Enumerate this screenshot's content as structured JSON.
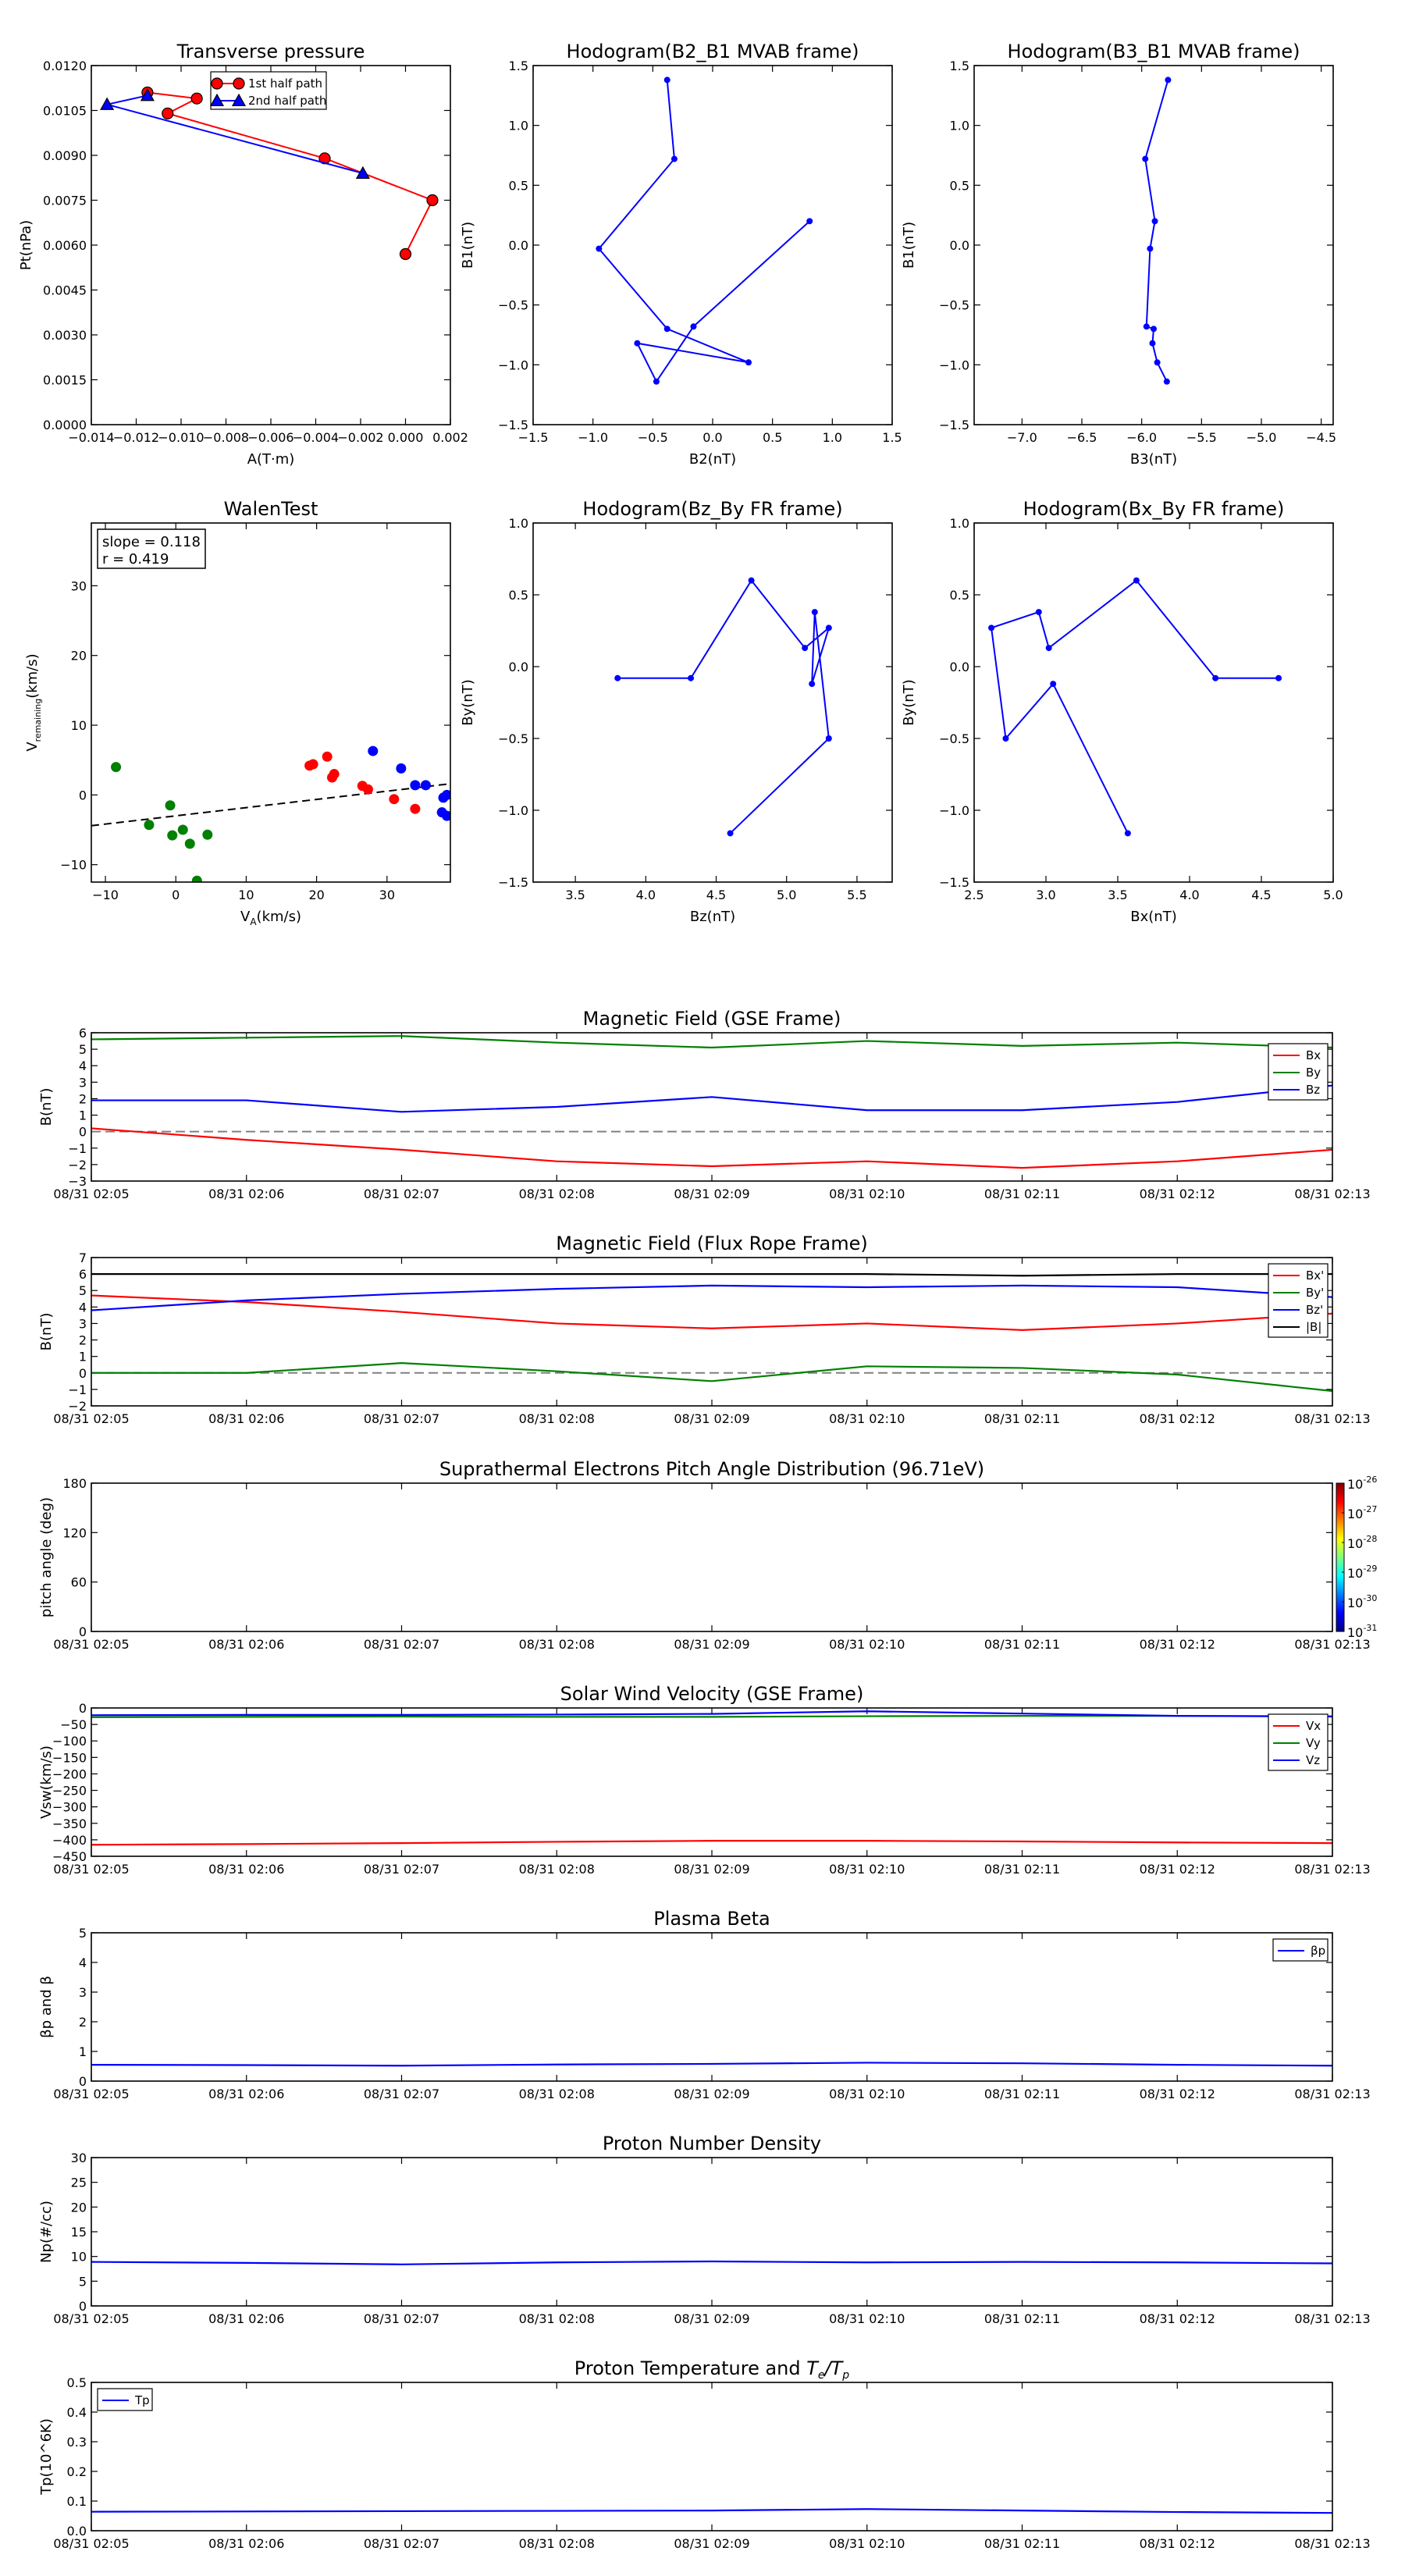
{
  "colors": {
    "red": "#ff0000",
    "green": "#008000",
    "blue": "#0000ff",
    "black": "#000000",
    "dash": "#808080"
  },
  "time_ticks": [
    "08/31 02:05",
    "08/31 02:06",
    "08/31 02:07",
    "08/31 02:08",
    "08/31 02:09",
    "08/31 02:10",
    "08/31 02:11",
    "08/31 02:12",
    "08/31 02:13"
  ],
  "chart_data": [
    {
      "id": "tp",
      "type": "line",
      "title": "Transverse pressure",
      "xlabel": "A(T·m)",
      "ylabel": "Pt(nPa)",
      "xlim": [
        -0.014,
        0.002
      ],
      "ylim": [
        0,
        0.012
      ],
      "grid": false,
      "legend_position": "top-right",
      "xticks": [
        -0.014,
        -0.012,
        -0.01,
        -0.008,
        -0.006,
        -0.004,
        -0.002,
        0.0,
        0.002
      ],
      "xtick_labels": [
        "−0.014",
        "−0.012",
        "−0.010",
        "−0.008",
        "−0.006",
        "−0.004",
        "−0.002",
        "0.000",
        "0.002"
      ],
      "yticks": [
        0,
        0.0015,
        0.003,
        0.0045,
        0.006,
        0.0075,
        0.009,
        0.0105,
        0.012
      ],
      "ytick_labels": [
        "0.0000",
        "0.0015",
        "0.0030",
        "0.0045",
        "0.0060",
        "0.0075",
        "0.0090",
        "0.0105",
        "0.0120"
      ],
      "series": [
        {
          "name": "1st half path",
          "color": "#ff0000",
          "marker": "circle",
          "x": [
            0.0,
            0.0012,
            -0.0036,
            -0.0106,
            -0.0093,
            -0.0115
          ],
          "y": [
            0.0057,
            0.0075,
            0.0089,
            0.0104,
            0.0109,
            0.0111
          ]
        },
        {
          "name": "2nd half path",
          "color": "#0000ff",
          "marker": "triangle",
          "x": [
            -0.0115,
            -0.0133,
            -0.0019
          ],
          "y": [
            0.011,
            0.0107,
            0.0084
          ]
        }
      ]
    },
    {
      "id": "h21",
      "type": "line",
      "title": "Hodogram(B2_B1 MVAB frame)",
      "xlabel": "B2(nT)",
      "ylabel": "B1(nT)",
      "xlim": [
        -1.5,
        1.5
      ],
      "ylim": [
        -1.5,
        1.5
      ],
      "grid": false,
      "xticks": [
        -1.5,
        -1.0,
        -0.5,
        0.0,
        0.5,
        1.0,
        1.5
      ],
      "xtick_labels": [
        "−1.5",
        "−1.0",
        "−0.5",
        "0.0",
        "0.5",
        "1.0",
        "1.5"
      ],
      "yticks": [
        -1.5,
        -1.0,
        -0.5,
        0.0,
        0.5,
        1.0,
        1.5
      ],
      "ytick_labels": [
        "−1.5",
        "−1.0",
        "−0.5",
        "0.0",
        "0.5",
        "1.0",
        "1.5"
      ],
      "series": [
        {
          "color": "#0000ff",
          "marker": "dot",
          "x": [
            -0.38,
            -0.32,
            -0.95,
            -0.38,
            0.3,
            -0.63,
            -0.47,
            -0.16,
            0.81
          ],
          "y": [
            1.38,
            0.72,
            -0.03,
            -0.7,
            -0.98,
            -0.82,
            -1.14,
            -0.68,
            0.2
          ]
        }
      ]
    },
    {
      "id": "h31",
      "type": "line",
      "title": "Hodogram(B3_B1 MVAB frame)",
      "xlabel": "B3(nT)",
      "ylabel": "B1(nT)",
      "xlim": [
        -7.4,
        -4.4
      ],
      "ylim": [
        -1.5,
        1.5
      ],
      "grid": false,
      "xticks": [
        -7.0,
        -6.5,
        -6.0,
        -5.5,
        -5.0,
        -4.5
      ],
      "xtick_labels": [
        "−7.0",
        "−6.5",
        "−6.0",
        "−5.5",
        "−5.0",
        "−4.5"
      ],
      "yticks": [
        -1.5,
        -1.0,
        -0.5,
        0.0,
        0.5,
        1.0,
        1.5
      ],
      "ytick_labels": [
        "−1.5",
        "−1.0",
        "−0.5",
        "0.0",
        "0.5",
        "1.0",
        "1.5"
      ],
      "series": [
        {
          "color": "#0000ff",
          "marker": "dot",
          "x": [
            -5.78,
            -5.97,
            -5.89,
            -5.93,
            -5.96,
            -5.9,
            -5.91,
            -5.87,
            -5.79
          ],
          "y": [
            1.38,
            0.72,
            0.2,
            -0.03,
            -0.68,
            -0.7,
            -0.82,
            -0.98,
            -1.14
          ]
        }
      ]
    },
    {
      "id": "walen",
      "type": "scatter",
      "title": "WalenTest",
      "xlabel": "V_A(km/s)",
      "ylabel": "V_remaining(km/s)",
      "annotation_lines": [
        "slope = 0.118",
        "r = 0.419"
      ],
      "xlim": [
        -12,
        39
      ],
      "ylim": [
        -12.5,
        39
      ],
      "grid": false,
      "xticks": [
        -10,
        0,
        10,
        20,
        30
      ],
      "xtick_labels": [
        "−10",
        "0",
        "10",
        "20",
        "30"
      ],
      "yticks": [
        -10,
        0,
        10,
        20,
        30
      ],
      "ytick_labels": [
        "−10",
        "0",
        "10",
        "20",
        "30"
      ],
      "fit_line": {
        "slope": 0.118,
        "intercept": -3.0
      },
      "series": [
        {
          "color": "#008000",
          "x": [
            -8.5,
            -3.8,
            -0.8,
            -0.5,
            1,
            2,
            4.5,
            3
          ],
          "y": [
            4,
            -4.3,
            -1.5,
            -5.8,
            -5,
            -7,
            -5.7,
            -12.3
          ]
        },
        {
          "color": "#ff0000",
          "x": [
            19,
            19.5,
            21.5,
            22.5,
            22.2,
            26.5,
            27.3,
            31,
            34
          ],
          "y": [
            4.2,
            4.4,
            5.5,
            3,
            2.5,
            1.3,
            0.8,
            -0.6,
            -2
          ]
        },
        {
          "color": "#0000ff",
          "x": [
            28,
            32,
            34,
            35.5,
            38,
            38.5,
            37.8,
            38.5
          ],
          "y": [
            6.3,
            3.8,
            1.4,
            1.4,
            -0.4,
            0,
            -2.5,
            -3
          ]
        }
      ]
    },
    {
      "id": "bzby",
      "type": "line",
      "title": "Hodogram(Bz_By FR frame)",
      "xlabel": "Bz(nT)",
      "ylabel": "By(nT)",
      "xlim": [
        3.2,
        5.75
      ],
      "ylim": [
        -1.5,
        1.0
      ],
      "grid": false,
      "xticks": [
        3.5,
        4.0,
        4.5,
        5.0,
        5.5
      ],
      "xtick_labels": [
        "3.5",
        "4.0",
        "4.5",
        "5.0",
        "5.5"
      ],
      "yticks": [
        -1.5,
        -1.0,
        -0.5,
        0.0,
        0.5,
        1.0
      ],
      "ytick_labels": [
        "−1.5",
        "−1.0",
        "−0.5",
        "0.0",
        "0.5",
        "1.0"
      ],
      "series": [
        {
          "color": "#0000ff",
          "marker": "dot",
          "x": [
            3.8,
            4.32,
            4.75,
            5.13,
            5.3,
            5.18,
            5.2,
            5.3,
            4.6
          ],
          "y": [
            -0.08,
            -0.08,
            0.6,
            0.13,
            0.27,
            -0.12,
            0.38,
            -0.5,
            -1.16
          ]
        }
      ]
    },
    {
      "id": "bxby",
      "type": "line",
      "title": "Hodogram(Bx_By FR frame)",
      "xlabel": "Bx(nT)",
      "ylabel": "By(nT)",
      "xlim": [
        2.5,
        5.0
      ],
      "ylim": [
        -1.5,
        1.0
      ],
      "grid": false,
      "xticks": [
        2.5,
        3.0,
        3.5,
        4.0,
        4.5,
        5.0
      ],
      "xtick_labels": [
        "2.5",
        "3.0",
        "3.5",
        "4.0",
        "4.5",
        "5.0"
      ],
      "yticks": [
        -1.5,
        -1.0,
        -0.5,
        0.0,
        0.5,
        1.0
      ],
      "ytick_labels": [
        "−1.5",
        "−1.0",
        "−0.5",
        "0.0",
        "0.5",
        "1.0"
      ],
      "series": [
        {
          "color": "#0000ff",
          "marker": "dot",
          "x": [
            4.62,
            4.18,
            3.63,
            3.02,
            2.95,
            2.62,
            2.72,
            3.05,
            3.57
          ],
          "y": [
            -0.08,
            -0.08,
            0.6,
            0.13,
            0.38,
            0.27,
            -0.5,
            -0.12,
            -1.16
          ]
        }
      ]
    },
    {
      "id": "bgse",
      "type": "line",
      "title": "Magnetic Field (GSE Frame)",
      "ylabel": "B(nT)",
      "xlim": [
        0,
        8
      ],
      "ylim": [
        -3,
        6
      ],
      "grid": false,
      "zero_line": true,
      "legend_position": "right",
      "yticks": [
        -3,
        -2,
        -1,
        0,
        1,
        2,
        3,
        4,
        5,
        6
      ],
      "ytick_labels": [
        "−3",
        "−2",
        "−1",
        "0",
        "1",
        "2",
        "3",
        "4",
        "5",
        "6"
      ],
      "x": [
        0,
        1,
        2,
        3,
        4,
        5,
        6,
        7,
        8
      ],
      "series": [
        {
          "name": "Bx",
          "color": "#ff0000",
          "values": [
            0.2,
            -0.5,
            -1.1,
            -1.8,
            -2.1,
            -1.8,
            -2.2,
            -1.8,
            -1.1
          ]
        },
        {
          "name": "By",
          "color": "#008000",
          "values": [
            5.6,
            5.7,
            5.8,
            5.4,
            5.1,
            5.5,
            5.2,
            5.4,
            5.1
          ]
        },
        {
          "name": "Bz",
          "color": "#0000ff",
          "values": [
            1.9,
            1.9,
            1.2,
            1.5,
            2.1,
            1.3,
            1.3,
            1.8,
            2.8
          ]
        }
      ]
    },
    {
      "id": "bfr",
      "type": "line",
      "title": "Magnetic Field (Flux Rope Frame)",
      "ylabel": "B(nT)",
      "xlim": [
        0,
        8
      ],
      "ylim": [
        -2,
        7
      ],
      "grid": false,
      "zero_line": true,
      "legend_position": "right",
      "yticks": [
        -2,
        -1,
        0,
        1,
        2,
        3,
        4,
        5,
        6,
        7
      ],
      "ytick_labels": [
        "−2",
        "−1",
        "0",
        "1",
        "2",
        "3",
        "4",
        "5",
        "6",
        "7"
      ],
      "x": [
        0,
        1,
        2,
        3,
        4,
        5,
        6,
        7,
        8
      ],
      "series": [
        {
          "name": "Bx'",
          "color": "#ff0000",
          "values": [
            4.7,
            4.3,
            3.7,
            3.0,
            2.7,
            3.0,
            2.6,
            3.0,
            3.6
          ]
        },
        {
          "name": "By'",
          "color": "#008000",
          "values": [
            0.0,
            0.0,
            0.6,
            0.1,
            -0.5,
            0.4,
            0.3,
            -0.1,
            -1.1
          ]
        },
        {
          "name": "Bz'",
          "color": "#0000ff",
          "values": [
            3.8,
            4.4,
            4.8,
            5.1,
            5.3,
            5.2,
            5.3,
            5.2,
            4.6
          ]
        },
        {
          "name": "|B|",
          "color": "#000000",
          "values": [
            6.0,
            6.0,
            6.0,
            6.0,
            6.0,
            6.0,
            5.9,
            6.0,
            6.0
          ]
        }
      ]
    },
    {
      "id": "pad",
      "type": "heatmap",
      "title": "Suprathermal Electrons Pitch Angle Distribution (96.71eV)",
      "ylabel": "pitch angle (deg)",
      "xlim": [
        0,
        8
      ],
      "ylim": [
        0,
        180
      ],
      "grid": false,
      "yticks": [
        0,
        60,
        120,
        180
      ],
      "ytick_labels": [
        "0",
        "60",
        "120",
        "180"
      ],
      "colorbar": {
        "ticks": [
          "10-31",
          "10-30",
          "10-29",
          "10-28",
          "10-27",
          "10-26"
        ],
        "colors": [
          "#00007f",
          "#0000ff",
          "#007fff",
          "#00ffff",
          "#7fff7f",
          "#ffff00",
          "#ff7f00",
          "#ff0000",
          "#7f0000"
        ]
      }
    },
    {
      "id": "vsw",
      "type": "line",
      "title": "Solar Wind Velocity (GSE Frame)",
      "ylabel": "Vsw(km/s)",
      "xlim": [
        0,
        8
      ],
      "ylim": [
        -450,
        0
      ],
      "grid": false,
      "legend_position": "right",
      "yticks": [
        -450,
        -400,
        -350,
        -300,
        -250,
        -200,
        -150,
        -100,
        -50,
        0
      ],
      "ytick_labels": [
        "−450",
        "−400",
        "−350",
        "−300",
        "−250",
        "−200",
        "−150",
        "−100",
        "−50",
        "0"
      ],
      "x": [
        0,
        1,
        2,
        3,
        4,
        5,
        6,
        7,
        8
      ],
      "series": [
        {
          "name": "Vx",
          "color": "#ff0000",
          "values": [
            -415,
            -413,
            -410,
            -406,
            -403,
            -403,
            -405,
            -408,
            -410
          ]
        },
        {
          "name": "Vy",
          "color": "#008000",
          "values": [
            -28,
            -27,
            -26,
            -27,
            -27,
            -25,
            -24,
            -24,
            -25
          ]
        },
        {
          "name": "Vz",
          "color": "#0000ff",
          "values": [
            -22,
            -21,
            -21,
            -20,
            -18,
            -10,
            -17,
            -24,
            -26
          ]
        }
      ]
    },
    {
      "id": "beta",
      "type": "line",
      "title": "Plasma Beta",
      "ylabel": "βp and β",
      "xlim": [
        0,
        8
      ],
      "ylim": [
        0,
        5
      ],
      "grid": false,
      "legend_position": "top-right",
      "yticks": [
        0,
        1,
        2,
        3,
        4,
        5
      ],
      "ytick_labels": [
        "0",
        "1",
        "2",
        "3",
        "4",
        "5"
      ],
      "x": [
        0,
        1,
        2,
        3,
        4,
        5,
        6,
        7,
        8
      ],
      "series": [
        {
          "name": "βp",
          "color": "#0000ff",
          "values": [
            0.55,
            0.54,
            0.52,
            0.56,
            0.58,
            0.62,
            0.6,
            0.55,
            0.52
          ]
        }
      ]
    },
    {
      "id": "np",
      "type": "line",
      "title": "Proton Number Density",
      "ylabel": "Np(#/cc)",
      "xlim": [
        0,
        8
      ],
      "ylim": [
        0,
        30
      ],
      "grid": false,
      "yticks": [
        0,
        5,
        10,
        15,
        20,
        25,
        30
      ],
      "ytick_labels": [
        "0",
        "5",
        "10",
        "15",
        "20",
        "25",
        "30"
      ],
      "x": [
        0,
        1,
        2,
        3,
        4,
        5,
        6,
        7,
        8
      ],
      "series": [
        {
          "color": "#0000ff",
          "values": [
            8.9,
            8.7,
            8.4,
            8.8,
            9.0,
            8.8,
            8.9,
            8.8,
            8.6
          ]
        }
      ]
    },
    {
      "id": "tp2",
      "type": "line",
      "title": "Proton Temperature and Te/Tp",
      "ylabel": "Tp(10^6K)",
      "xlim": [
        0,
        8
      ],
      "ylim": [
        0,
        0.5
      ],
      "grid": false,
      "legend_position": "top-left",
      "yticks": [
        0,
        0.1,
        0.2,
        0.3,
        0.4,
        0.5
      ],
      "ytick_labels": [
        "0.0",
        "0.1",
        "0.2",
        "0.3",
        "0.4",
        "0.5"
      ],
      "x": [
        0,
        1,
        2,
        3,
        4,
        5,
        6,
        7,
        8
      ],
      "series": [
        {
          "name": "Tp",
          "color": "#0000ff",
          "values": [
            0.064,
            0.065,
            0.066,
            0.067,
            0.068,
            0.073,
            0.068,
            0.063,
            0.06
          ]
        }
      ]
    }
  ]
}
